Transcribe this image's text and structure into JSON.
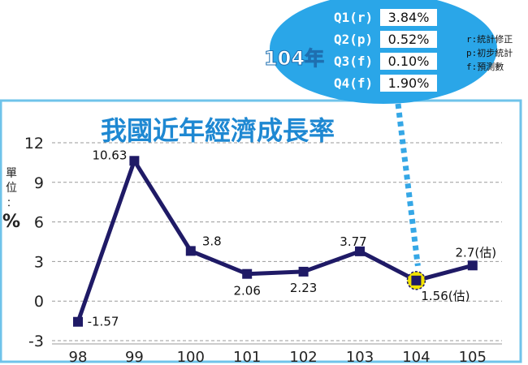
{
  "chart_data": {
    "type": "line",
    "title": "我國近年經濟成長率",
    "unit_label": [
      "單",
      "位",
      "：",
      "%"
    ],
    "categories": [
      "98",
      "99",
      "100",
      "101",
      "102",
      "103",
      "104",
      "105"
    ],
    "values": [
      -1.57,
      10.63,
      3.8,
      2.06,
      2.23,
      3.77,
      1.56,
      2.7
    ],
    "data_labels": [
      "-1.57",
      "10.63",
      "3.8",
      "2.06",
      "2.23",
      "3.77",
      "1.56(估)",
      "2.7(估)"
    ],
    "y_ticks": [
      "12",
      "9",
      "6",
      "3",
      "0",
      "-3"
    ],
    "y_tick_values": [
      12,
      9,
      6,
      3,
      0,
      -3
    ],
    "ylim": [
      -3,
      12
    ],
    "grid": "horizontal dashed",
    "highlight_category": "104",
    "colors": {
      "line": "#1f1a66",
      "marker": "#1f1a66",
      "title": "#1e88d2",
      "bubble": "#2aa6e8",
      "callout_line": "#35a7e6",
      "highlight": "#f2e300",
      "frame": "#6fc3ea"
    }
  },
  "inset": {
    "year_label": "104年",
    "rows": [
      {
        "quarter": "Q1(r)",
        "value": "3.84%"
      },
      {
        "quarter": "Q2(p)",
        "value": "0.52%"
      },
      {
        "quarter": "Q3(f)",
        "value": "0.10%"
      },
      {
        "quarter": "Q4(f)",
        "value": "1.90%"
      }
    ],
    "legend": [
      "r:統計修正",
      "p:初步統計",
      "f:預測數"
    ]
  }
}
